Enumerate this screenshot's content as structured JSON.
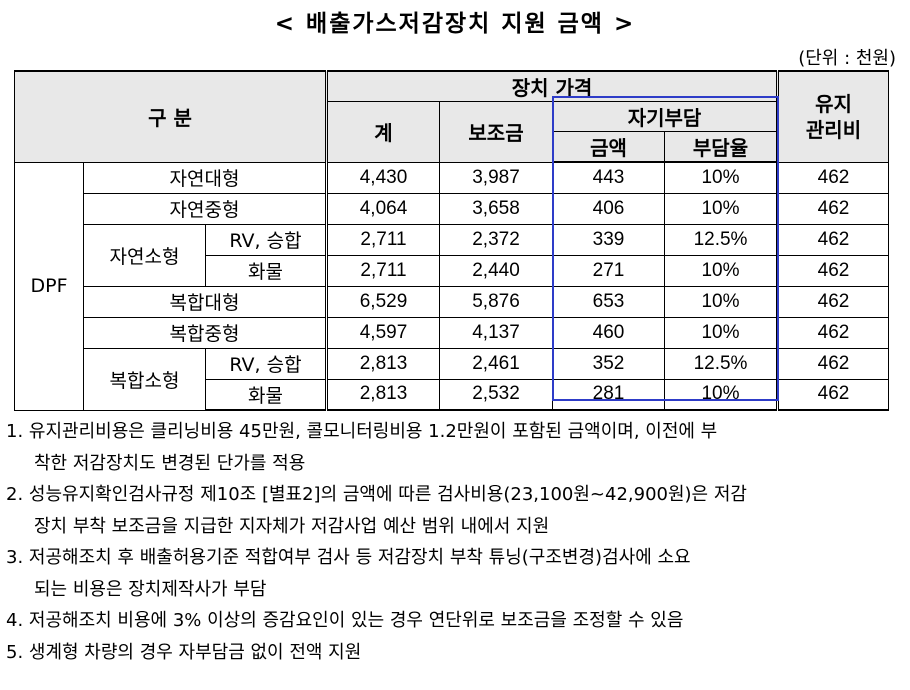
{
  "title": "< 배출가스저감장치 지원 금액 >",
  "unit": "(단위 : 천원)",
  "table": {
    "header": {
      "category": "구   분",
      "price_group": "장치 가격",
      "total": "계",
      "subsidy": "보조금",
      "self_pay_group": "자기부담",
      "amount": "금액",
      "ratio": "부담율",
      "maintenance": "유지\n관리비"
    },
    "dpf_label": "DPF",
    "rows": [
      {
        "type": "자연대형",
        "sub": "",
        "total": "4,430",
        "subsidy": "3,987",
        "amount": "443",
        "ratio": "10%",
        "maint": "462"
      },
      {
        "type": "자연중형",
        "sub": "",
        "total": "4,064",
        "subsidy": "3,658",
        "amount": "406",
        "ratio": "10%",
        "maint": "462"
      },
      {
        "type": "자연소형",
        "sub": "RV, 승합",
        "total": "2,711",
        "subsidy": "2,372",
        "amount": "339",
        "ratio": "12.5%",
        "maint": "462"
      },
      {
        "type": "",
        "sub": "화물",
        "total": "2,711",
        "subsidy": "2,440",
        "amount": "271",
        "ratio": "10%",
        "maint": "462"
      },
      {
        "type": "복합대형",
        "sub": "",
        "total": "6,529",
        "subsidy": "5,876",
        "amount": "653",
        "ratio": "10%",
        "maint": "462"
      },
      {
        "type": "복합중형",
        "sub": "",
        "total": "4,597",
        "subsidy": "4,137",
        "amount": "460",
        "ratio": "10%",
        "maint": "462"
      },
      {
        "type": "복합소형",
        "sub": "RV, 승합",
        "total": "2,813",
        "subsidy": "2,461",
        "amount": "352",
        "ratio": "12.5%",
        "maint": "462"
      },
      {
        "type": "",
        "sub": "화물",
        "total": "2,813",
        "subsidy": "2,532",
        "amount": "281",
        "ratio": "10%",
        "maint": "462"
      }
    ]
  },
  "notes": [
    {
      "line1": "1. 유지관리비용은 클리닝비용 45만원, 콜모니터링비용 1.2만원이 포함된 금액이며, 이전에 부",
      "line2": "착한 저감장치도 변경된 단가를 적용"
    },
    {
      "line1": "2. 성능유지확인검사규정 제10조 [별표2]의 금액에 따른 검사비용(23,100원~42,900원)은 저감",
      "line2": "장치 부착 보조금을 지급한 지자체가 저감사업 예산 범위 내에서 지원"
    },
    {
      "line1": "3. 저공해조치 후 배출허용기준 적합여부 검사 등 저감장치 부착 튜닝(구조변경)검사에 소요",
      "line2": "되는 비용은 장치제작사가 부담"
    },
    {
      "line1": "4. 저공해조치 비용에 3% 이상의 증감요인이 있는 경우 연단위로 보조금을 조정할 수 있음",
      "line2": ""
    },
    {
      "line1": "5. 생계형 차량의 경우 자부담금 없이 전액 지원",
      "line2": ""
    }
  ]
}
